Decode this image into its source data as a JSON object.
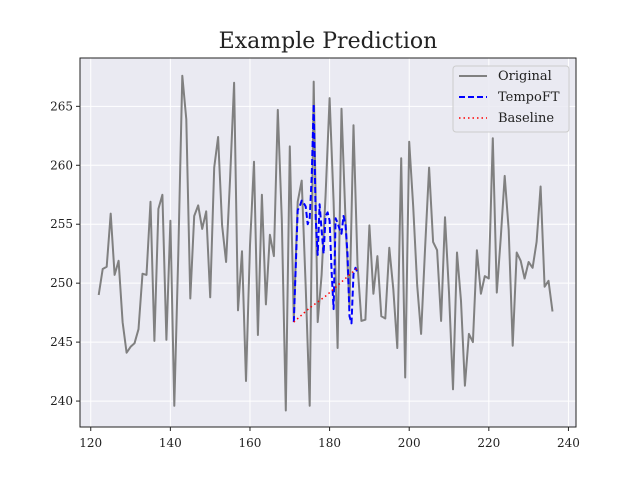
{
  "chart_data": {
    "type": "line",
    "title": "Example Prediction",
    "xlabel": "",
    "ylabel": "",
    "xlim": [
      117.3,
      241.9
    ],
    "ylim": [
      237.8,
      269.1
    ],
    "xticks": [
      120,
      140,
      160,
      180,
      200,
      220,
      240
    ],
    "yticks": [
      240,
      245,
      250,
      255,
      260,
      265
    ],
    "grid": true,
    "legend_position": "top-right",
    "series": [
      {
        "name": "Original",
        "color": "#808080",
        "style": "solid",
        "x": [
          122,
          123,
          124,
          125,
          126,
          127,
          128,
          129,
          130,
          131,
          132,
          133,
          134,
          135,
          136,
          137,
          138,
          139,
          140,
          141,
          142,
          143,
          144,
          145,
          146,
          147,
          148,
          149,
          150,
          151,
          152,
          153,
          154,
          155,
          156,
          157,
          158,
          159,
          160,
          161,
          162,
          163,
          164,
          165,
          166,
          167,
          168,
          169,
          170,
          171,
          172,
          173,
          174,
          175,
          176,
          177,
          178,
          179,
          180,
          181,
          182,
          183,
          184,
          185,
          186,
          187,
          188,
          189,
          190,
          191,
          192,
          193,
          194,
          195,
          196,
          197,
          198,
          199,
          200,
          201,
          202,
          203,
          204,
          205,
          206,
          207,
          208,
          209,
          210,
          211,
          212,
          213,
          214,
          215,
          216,
          217,
          218,
          219,
          220,
          221,
          222,
          223,
          224,
          225,
          226,
          227,
          228,
          229,
          230,
          231,
          232,
          233,
          234,
          235,
          236
        ],
        "y": [
          249.0,
          251.2,
          251.4,
          255.9,
          250.7,
          251.9,
          246.7,
          244.1,
          244.6,
          244.9,
          246.1,
          250.8,
          250.7,
          256.9,
          245.1,
          256.3,
          257.5,
          245.2,
          255.3,
          239.6,
          252.5,
          267.6,
          263.9,
          248.7,
          255.7,
          256.6,
          254.6,
          256.1,
          248.8,
          259.8,
          262.4,
          254.9,
          251.8,
          258.9,
          267.0,
          247.7,
          252.7,
          241.7,
          253.2,
          260.3,
          245.6,
          257.5,
          248.2,
          254.1,
          252.3,
          264.7,
          255.4,
          239.2,
          261.6,
          247.0,
          256.9,
          258.7,
          249.7,
          239.6,
          267.1,
          246.7,
          250.7,
          257.5,
          265.7,
          256.9,
          244.5,
          264.8,
          255.4,
          248.0,
          263.4,
          251.6,
          246.8,
          246.9,
          254.9,
          249.1,
          252.3,
          247.2,
          247.0,
          253.0,
          249.5,
          244.5,
          260.6,
          242.0,
          262.0,
          256.5,
          249.8,
          245.7,
          253.0,
          259.8,
          253.5,
          252.8,
          246.8,
          255.6,
          249.2,
          241.0,
          252.6,
          248.5,
          241.3,
          245.7,
          245.0,
          252.8,
          249.1,
          250.6,
          250.4,
          262.3,
          249.2,
          253.9,
          259.1,
          254.5,
          244.7,
          252.6,
          251.9,
          250.4,
          251.8,
          251.3,
          253.5,
          258.2,
          249.7,
          250.2,
          247.6
        ]
      },
      {
        "name": "TempoFT",
        "color": "#0000ff",
        "style": "dashed",
        "x": [
          171,
          171.5,
          172,
          172.5,
          173,
          173.5,
          174,
          174.5,
          175,
          175.5,
          176,
          176.5,
          177,
          177.5,
          178,
          178.5,
          179,
          179.5,
          180,
          180.5,
          181,
          181.5,
          182,
          182.5,
          183,
          183.5,
          184,
          184.5,
          185,
          185.5,
          186,
          186.5,
          187
        ],
        "y": [
          246.7,
          251.5,
          256.2,
          256.5,
          257.0,
          256.8,
          256.5,
          255.0,
          255.5,
          259.0,
          265.2,
          255.5,
          252.4,
          256.7,
          254.5,
          252.5,
          255.7,
          256.0,
          255.3,
          251.0,
          247.8,
          255.5,
          255.1,
          254.6,
          254.2,
          255.7,
          255.0,
          252.5,
          247.2,
          246.6,
          250.8,
          251.3,
          250.9
        ]
      },
      {
        "name": "Baseline",
        "color": "#ff0000",
        "style": "dotted",
        "x": [
          171,
          173,
          175,
          177,
          179,
          181,
          183,
          185,
          187
        ],
        "y": [
          246.7,
          247.3,
          247.9,
          248.4,
          248.9,
          249.5,
          250.1,
          250.7,
          251.3
        ]
      }
    ]
  }
}
